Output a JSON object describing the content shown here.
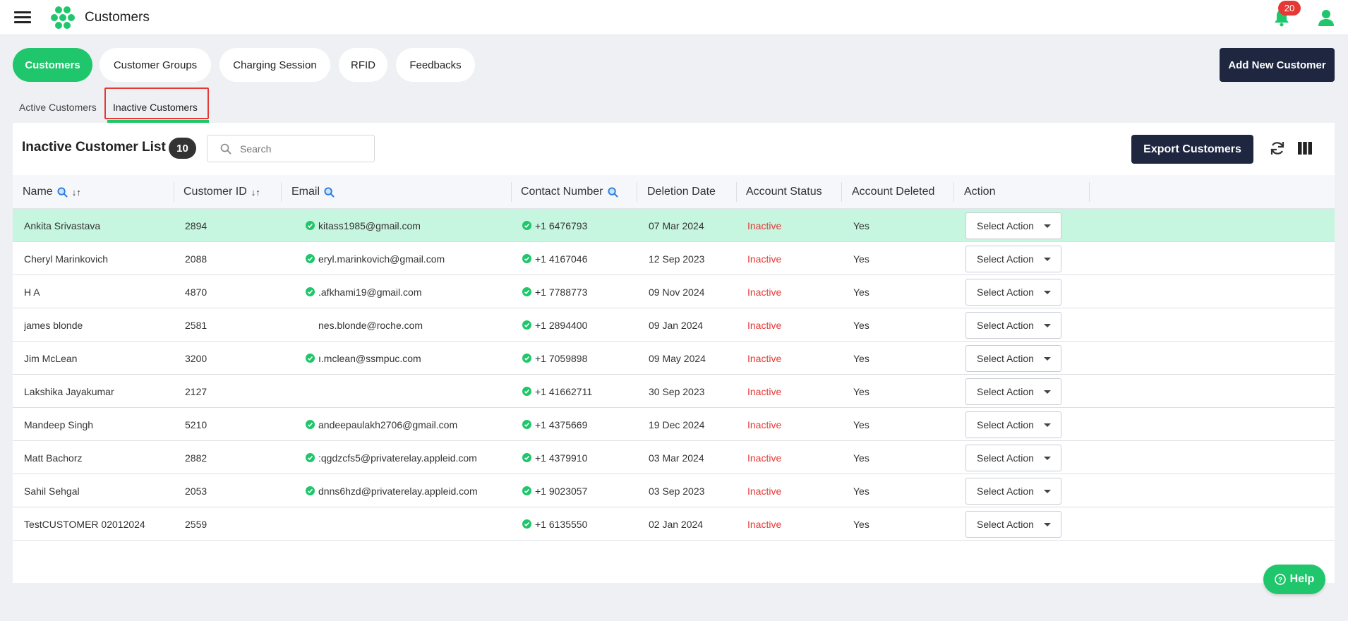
{
  "app": {
    "title": "Customers",
    "notification_count": "20"
  },
  "tabs": [
    {
      "label": "Customers",
      "active": true
    },
    {
      "label": "Customer Groups",
      "active": false
    },
    {
      "label": "Charging Session",
      "active": false
    },
    {
      "label": "RFID",
      "active": false
    },
    {
      "label": "Feedbacks",
      "active": false
    }
  ],
  "add_button": "Add New Customer",
  "subtabs": {
    "active_customers": "Active Customers",
    "inactive_customers": "Inactive Customers"
  },
  "list": {
    "title": "Inactive Customer List",
    "count": "10",
    "search_placeholder": "Search",
    "export_label": "Export Customers"
  },
  "columns": {
    "name": "Name",
    "customer_id": "Customer ID",
    "email": "Email",
    "contact": "Contact Number",
    "deletion_date": "Deletion Date",
    "account_status": "Account Status",
    "account_deleted": "Account Deleted",
    "action": "Action"
  },
  "rows": [
    {
      "name": "Ankita Srivastava",
      "id": "2894",
      "email": "kitass1985@gmail.com",
      "email_verified": true,
      "contact": "+1 6476793",
      "date": "07 Mar 2024",
      "status": "Inactive",
      "deleted": "Yes",
      "action": "Select Action",
      "highlight": true
    },
    {
      "name": "Cheryl Marinkovich",
      "id": "2088",
      "email": "eryl.marinkovich@gmail.com",
      "email_verified": true,
      "contact": "+1 4167046",
      "date": "12 Sep 2023",
      "status": "Inactive",
      "deleted": "Yes",
      "action": "Select Action",
      "highlight": false
    },
    {
      "name": "H A",
      "id": "4870",
      "email": ".afkhami19@gmail.com",
      "email_verified": true,
      "contact": "+1 7788773",
      "date": "09 Nov 2024",
      "status": "Inactive",
      "deleted": "Yes",
      "action": "Select Action",
      "highlight": false
    },
    {
      "name": "james blonde",
      "id": "2581",
      "email": "nes.blonde@roche.com",
      "email_verified": false,
      "contact": "+1 2894400",
      "date": "09 Jan 2024",
      "status": "Inactive",
      "deleted": "Yes",
      "action": "Select Action",
      "highlight": false
    },
    {
      "name": "Jim McLean",
      "id": "3200",
      "email": "ı.mclean@ssmpuc.com",
      "email_verified": true,
      "contact": "+1 7059898",
      "date": "09 May 2024",
      "status": "Inactive",
      "deleted": "Yes",
      "action": "Select Action",
      "highlight": false
    },
    {
      "name": "Lakshika Jayakumar",
      "id": "2127",
      "email": "",
      "email_verified": false,
      "contact": "+1 41662711",
      "date": "30 Sep 2023",
      "status": "Inactive",
      "deleted": "Yes",
      "action": "Select Action",
      "highlight": false
    },
    {
      "name": "Mandeep Singh",
      "id": "5210",
      "email": "andeepaulakh2706@gmail.com",
      "email_verified": true,
      "contact": "+1 4375669",
      "date": "19 Dec 2024",
      "status": "Inactive",
      "deleted": "Yes",
      "action": "Select Action",
      "highlight": false
    },
    {
      "name": "Matt Bachorz",
      "id": "2882",
      "email": ":qgdzcfs5@privaterelay.appleid.com",
      "email_verified": true,
      "contact": "+1 4379910",
      "date": "03 Mar 2024",
      "status": "Inactive",
      "deleted": "Yes",
      "action": "Select Action",
      "highlight": false
    },
    {
      "name": "Sahil Sehgal",
      "id": "2053",
      "email": "dnns6hzd@privaterelay.appleid.com",
      "email_verified": true,
      "contact": "+1 9023057",
      "date": "03 Sep 2023",
      "status": "Inactive",
      "deleted": "Yes",
      "action": "Select Action",
      "highlight": false
    },
    {
      "name": "TestCUSTOMER 02012024",
      "id": "2559",
      "email": "",
      "email_verified": false,
      "contact": "+1 6135550",
      "date": "02 Jan 2024",
      "status": "Inactive",
      "deleted": "Yes",
      "action": "Select Action",
      "highlight": false
    }
  ],
  "help_label": "Help",
  "colors": {
    "accent": "#1fc66b",
    "dark": "#1f2740",
    "danger": "#e53935",
    "row_highlight": "#c6f6df"
  }
}
